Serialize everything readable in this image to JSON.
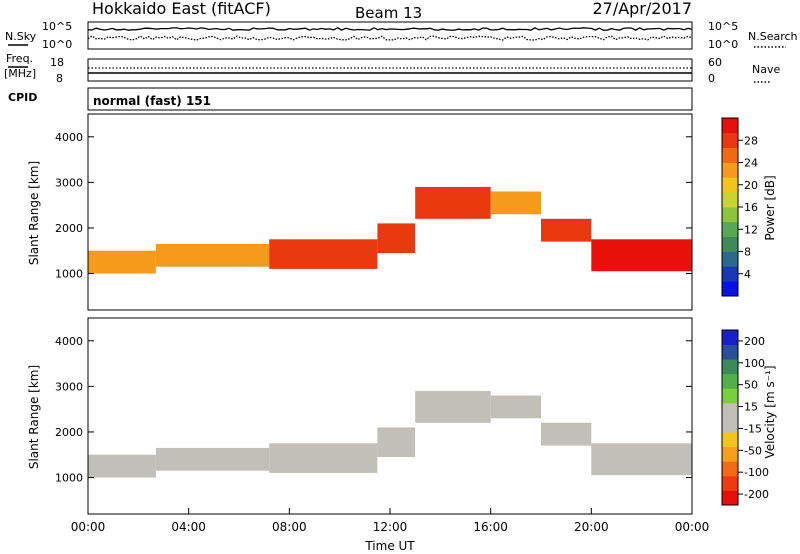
{
  "header": {
    "station": "Hokkaido East (fitACF)",
    "beam": "Beam 13",
    "date": "27/Apr/2017"
  },
  "noise_panel": {
    "left_label": "N.Sky",
    "right_label": "N.Search",
    "left_ticks": [
      "10^5",
      "10^0"
    ],
    "right_ticks": [
      "10^5",
      "10^0"
    ]
  },
  "freq_panel": {
    "left_label_1": "Freq.",
    "left_label_2": "[MHz]",
    "left_ticks": [
      "18",
      "8"
    ],
    "right_ticks": [
      "60",
      "0"
    ],
    "right_label": "Nave"
  },
  "cpid": {
    "label": "CPID",
    "value": "normal (fast) 151"
  },
  "chart_data": [
    {
      "type": "heatmap",
      "quantity": "Power",
      "ylabel": "Slant Range [km]",
      "xlabel": "",
      "ylim": [
        200,
        4500
      ],
      "xlim": [
        "00:00",
        "24:00"
      ],
      "y_ticks": [
        "1000",
        "2000",
        "3000",
        "4000"
      ],
      "x_ticks": [
        "00:00",
        "04:00",
        "08:00",
        "12:00",
        "16:00",
        "20:00",
        "00:00"
      ],
      "colorbar": {
        "label": "Power [dB]",
        "ticks": [
          "4",
          "8",
          "12",
          "16",
          "20",
          "24",
          "28"
        ],
        "range": [
          0,
          30
        ],
        "colors": [
          "#0a10e8",
          "#1838b8",
          "#2a6a8e",
          "#3f8a5a",
          "#56a856",
          "#8ec43a",
          "#c8d430",
          "#f4c41e",
          "#f59a1a",
          "#f06a14",
          "#e8380e",
          "#e8100a"
        ]
      },
      "echo_regions": [
        {
          "t_start": 0.0,
          "t_end": 2.7,
          "r_low": 1000,
          "r_high": 1500,
          "power": 22
        },
        {
          "t_start": 2.7,
          "t_end": 7.2,
          "r_low": 1150,
          "r_high": 1650,
          "power": 22
        },
        {
          "t_start": 7.2,
          "t_end": 11.5,
          "r_low": 1100,
          "r_high": 1750,
          "power": 27
        },
        {
          "t_start": 11.5,
          "t_end": 13.0,
          "r_low": 1450,
          "r_high": 2100,
          "power": 25
        },
        {
          "t_start": 13.0,
          "t_end": 16.0,
          "r_low": 2200,
          "r_high": 2900,
          "power": 26
        },
        {
          "t_start": 16.0,
          "t_end": 18.0,
          "r_low": 2300,
          "r_high": 2800,
          "power": 22
        },
        {
          "t_start": 18.0,
          "t_end": 20.0,
          "r_low": 1700,
          "r_high": 2200,
          "power": 26
        },
        {
          "t_start": 20.0,
          "t_end": 24.0,
          "r_low": 1050,
          "r_high": 1750,
          "power": 28
        }
      ]
    },
    {
      "type": "heatmap",
      "quantity": "Velocity",
      "ylabel": "Slant Range [km]",
      "xlabel": "Time UT",
      "ylim": [
        200,
        4500
      ],
      "xlim": [
        "00:00",
        "24:00"
      ],
      "y_ticks": [
        "1000",
        "2000",
        "3000",
        "4000"
      ],
      "x_ticks": [
        "00:00",
        "04:00",
        "08:00",
        "12:00",
        "16:00",
        "20:00",
        "00:00"
      ],
      "colorbar": {
        "label": "Velocity [m s⁻¹]",
        "ticks": [
          "200",
          "100",
          "50",
          "15",
          "-15",
          "-50",
          "-100",
          "-200"
        ],
        "range": [
          -250,
          250
        ],
        "colors": [
          "#e8100a",
          "#f03a10",
          "#f26a14",
          "#f5a01a",
          "#f4c41e",
          "#c0c0b8",
          "#c0c0b8",
          "#7ad03a",
          "#52b04a",
          "#3a8a5a",
          "#2a4e9a",
          "#1a20c8"
        ]
      },
      "echo_regions": [
        {
          "t_start": 0.0,
          "t_end": 2.7,
          "r_low": 1000,
          "r_high": 1500,
          "velocity": 0
        },
        {
          "t_start": 2.7,
          "t_end": 7.2,
          "r_low": 1150,
          "r_high": 1650,
          "velocity": 0
        },
        {
          "t_start": 7.2,
          "t_end": 11.5,
          "r_low": 1100,
          "r_high": 1750,
          "velocity": -5
        },
        {
          "t_start": 11.5,
          "t_end": 13.0,
          "r_low": 1450,
          "r_high": 2100,
          "velocity": 0
        },
        {
          "t_start": 13.0,
          "t_end": 16.0,
          "r_low": 2200,
          "r_high": 2900,
          "velocity": 0
        },
        {
          "t_start": 16.0,
          "t_end": 18.0,
          "r_low": 2300,
          "r_high": 2800,
          "velocity": 20
        },
        {
          "t_start": 18.0,
          "t_end": 20.0,
          "r_low": 1700,
          "r_high": 2200,
          "velocity": 40
        },
        {
          "t_start": 20.0,
          "t_end": 24.0,
          "r_low": 1050,
          "r_high": 1750,
          "velocity": 0
        }
      ]
    }
  ]
}
